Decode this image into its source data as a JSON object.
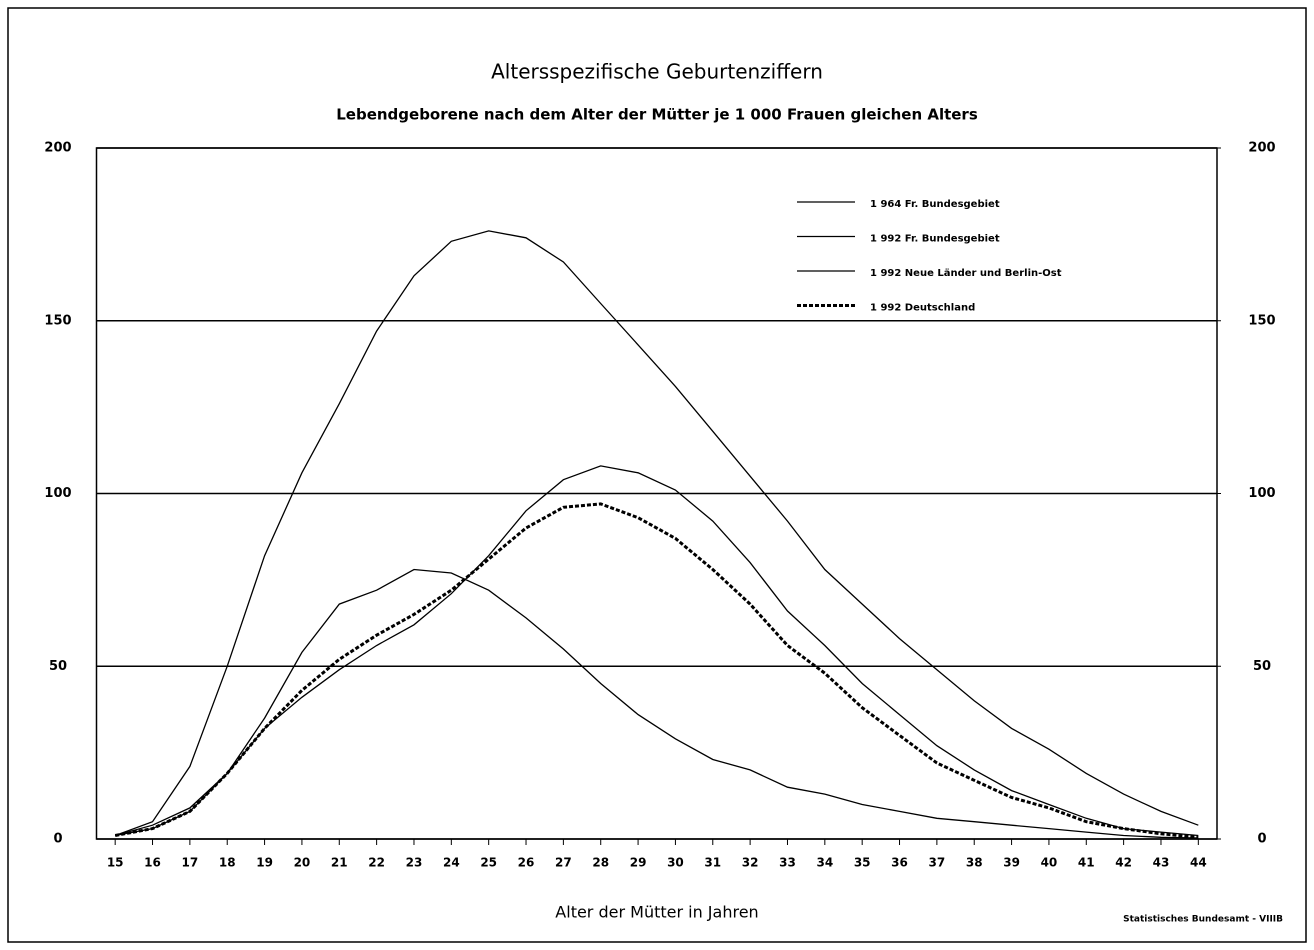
{
  "chart_data": {
    "type": "line",
    "title": "Altersspezifische Geburtenziffern",
    "subtitle": "Lebendgeborene nach dem Alter der Mütter je 1 000 Frauen gleichen Alters",
    "xlabel": "Alter der Mütter in Jahren",
    "source": "Statistisches Bundesamt - VIIIB",
    "categories": [
      "15",
      "16",
      "17",
      "18",
      "19",
      "20",
      "21",
      "22",
      "23",
      "24",
      "25",
      "26",
      "27",
      "28",
      "29",
      "30",
      "31",
      "32",
      "33",
      "34",
      "35",
      "36",
      "37",
      "38",
      "39",
      "40",
      "41",
      "42",
      "43",
      "44"
    ],
    "series": [
      {
        "name": "1 964 Fr. Bundesgebiet",
        "color": "#000000",
        "style": "solid",
        "values": [
          1,
          5,
          21,
          50,
          82,
          106,
          126,
          147,
          163,
          173,
          176,
          174,
          167,
          155,
          143,
          131,
          118,
          105,
          92,
          78,
          68,
          58,
          49,
          40,
          32,
          26,
          19,
          13,
          8,
          4
        ]
      },
      {
        "name": "1 992 Fr. Bundesgebiet",
        "color": "#000000",
        "style": "solid",
        "values": [
          1,
          3,
          8,
          19,
          32,
          41,
          49,
          56,
          62,
          71,
          82,
          95,
          104,
          108,
          106,
          101,
          92,
          80,
          66,
          56,
          45,
          36,
          27,
          20,
          14,
          10,
          6,
          3,
          2,
          1
        ]
      },
      {
        "name": "1 992 Neue Länder und Berlin-Ost",
        "color": "#000000",
        "style": "solid",
        "values": [
          1,
          4,
          9,
          19,
          35,
          54,
          68,
          72,
          78,
          77,
          72,
          64,
          55,
          45,
          36,
          29,
          23,
          20,
          15,
          13,
          10,
          8,
          6,
          5,
          4,
          3,
          2,
          1,
          0.5,
          0.3
        ]
      },
      {
        "name": "1 992 Deutschland",
        "color": "#000000",
        "style": "dashed",
        "values": [
          1,
          3,
          8,
          19,
          32,
          43,
          52,
          59,
          65,
          72,
          81,
          90,
          96,
          97,
          93,
          87,
          78,
          68,
          56,
          48,
          38,
          30,
          22,
          17,
          12,
          9,
          5,
          3,
          1.5,
          0.5
        ]
      }
    ],
    "ylim": [
      0,
      200
    ],
    "yticks": [
      0,
      50,
      100,
      150,
      200
    ],
    "y2lim": [
      0,
      200
    ],
    "y2ticks": [
      0,
      50,
      100,
      150,
      200
    ],
    "grid": true,
    "legend": "upper right"
  }
}
